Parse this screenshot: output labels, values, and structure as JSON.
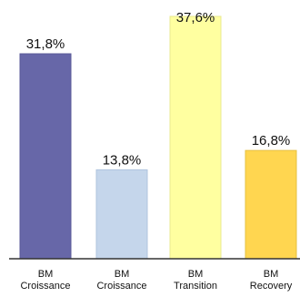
{
  "chart_data": {
    "type": "bar",
    "categories": [
      [
        "BM",
        "Croissance"
      ],
      [
        "BM",
        "Croissance"
      ],
      [
        "BM",
        "Transition"
      ],
      [
        "BM",
        "Recovery"
      ]
    ],
    "values": [
      31.8,
      13.8,
      37.6,
      16.8
    ],
    "value_labels": [
      "31,8%",
      "13,8%",
      "37,6%",
      "16,8%"
    ],
    "bar_colors": [
      "#6767A8",
      "#C5D6EB",
      "#FFFFA0",
      "#FFD650"
    ],
    "bar_outline_colors": [
      "#5A5A99",
      "#B0C4DE",
      "#E8E890",
      "#E6C040"
    ],
    "axis_color": "#333333",
    "ylim": [
      0,
      40
    ],
    "grid": false,
    "legend": "none"
  }
}
